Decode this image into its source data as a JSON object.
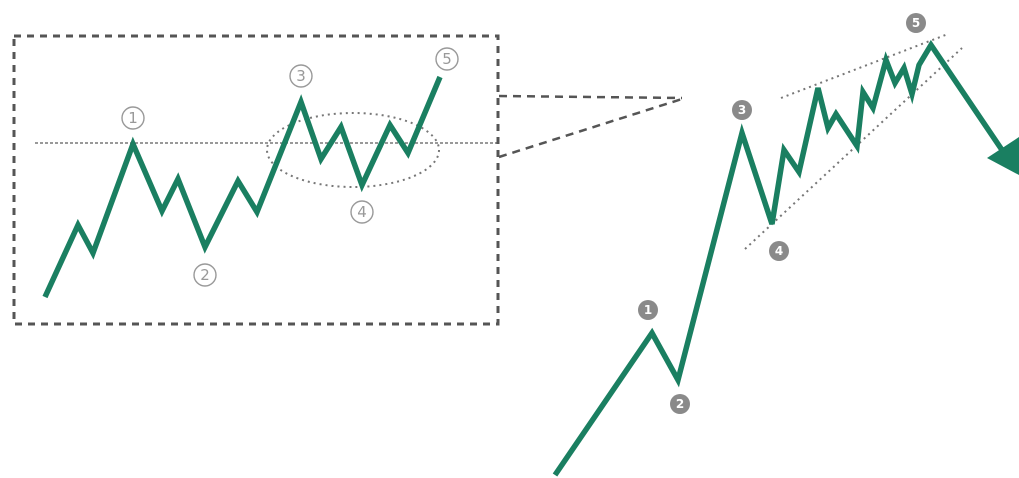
{
  "diagram": {
    "inset_labels": [
      "1",
      "2",
      "3",
      "4",
      "5"
    ],
    "main_labels": [
      "1",
      "2",
      "3",
      "4",
      "5"
    ],
    "colors": {
      "wave": "#1a7f61",
      "frame": "#555555",
      "label_outline": "#999999",
      "label_filled": "#8a8a8a"
    }
  }
}
